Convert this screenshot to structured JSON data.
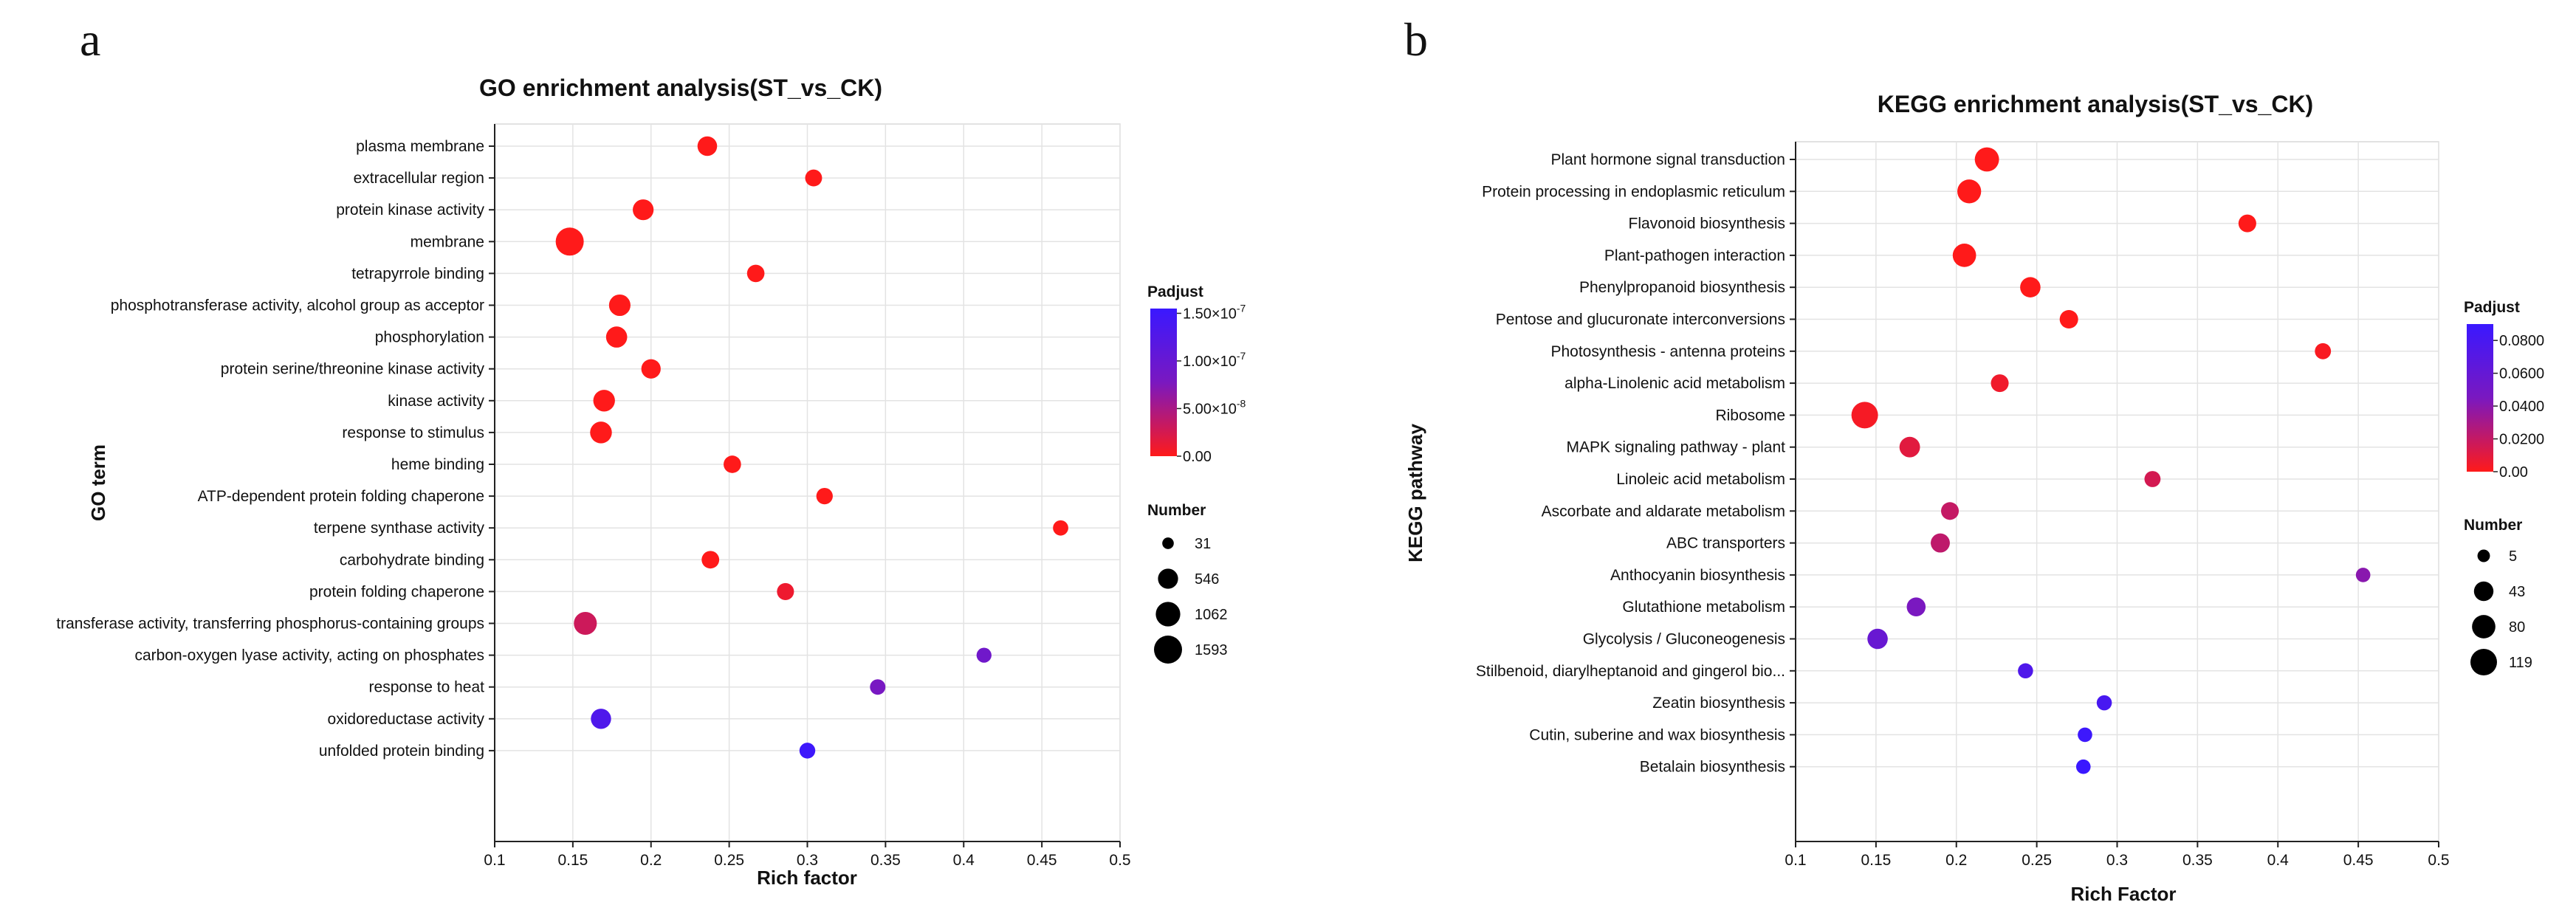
{
  "panel_labels": [
    "a",
    "b"
  ],
  "chart_data": [
    {
      "type": "scatter",
      "title": "GO enrichment analysis(ST_vs_CK)",
      "xlabel": "Rich factor",
      "ylabel": "GO term",
      "xlim": [
        0.1,
        0.5
      ],
      "x_ticks": [
        "0.1",
        "0.15",
        "0.2",
        "0.25",
        "0.3",
        "0.35",
        "0.4",
        "0.45",
        "0.5"
      ],
      "grid": true,
      "legend_position": "right",
      "color_legend": {
        "title": "Padjust",
        "range": [
          0,
          1.55e-07
        ],
        "colors": [
          "#ff1a1a",
          "#7a18c0",
          "#3a18ff"
        ],
        "ticks": [
          {
            "value": 1.5e-07,
            "base": "1.50×10",
            "exp": "-7"
          },
          {
            "value": 1e-07,
            "base": "1.00×10",
            "exp": "-7"
          },
          {
            "value": 5e-08,
            "base": "5.00×10",
            "exp": "-8"
          },
          {
            "value": 0,
            "base": "0.00",
            "exp": ""
          }
        ]
      },
      "size_legend": {
        "title": "Number",
        "entries": [
          31,
          546,
          1062,
          1593
        ],
        "labels": [
          "31",
          "546",
          "1062",
          "1593"
        ],
        "max": 1593
      },
      "categories": [
        "plasma membrane",
        "extracellular region",
        "protein kinase activity",
        "membrane",
        "tetrapyrrole binding",
        "phosphotransferase activity, alcohol group as acceptor",
        "phosphorylation",
        "protein serine/threonine kinase activity",
        "kinase activity",
        "response to stimulus",
        "heme binding",
        "ATP-dependent protein folding chaperone",
        "terpene synthase activity",
        "carbohydrate binding",
        "protein folding chaperone",
        "transferase activity, transferring phosphorus-containing groups",
        "carbon-oxygen lyase activity, acting on phosphates",
        "response to heat",
        "oxidoreductase activity",
        "unfolded protein binding"
      ],
      "rich_factor": [
        0.236,
        0.304,
        0.195,
        0.148,
        0.267,
        0.18,
        0.178,
        0.2,
        0.17,
        0.168,
        0.252,
        0.311,
        0.462,
        0.238,
        0.286,
        0.158,
        0.413,
        0.345,
        0.168,
        0.3
      ],
      "number": [
        500,
        280,
        620,
        1593,
        320,
        690,
        650,
        480,
        710,
        720,
        320,
        250,
        180,
        330,
        290,
        860,
        160,
        190,
        560,
        210
      ],
      "padjust": [
        0,
        0,
        0,
        0,
        0,
        0,
        0,
        0,
        0,
        0,
        0,
        0,
        0,
        0,
        1e-08,
        3e-08,
        9e-08,
        8e-08,
        1.3e-07,
        1.5e-07
      ]
    },
    {
      "type": "scatter",
      "title": "KEGG enrichment analysis(ST_vs_CK)",
      "xlabel": "Rich Factor",
      "ylabel": "KEGG pathway",
      "xlim": [
        0.1,
        0.5
      ],
      "x_ticks": [
        "0.1",
        "0.15",
        "0.2",
        "0.25",
        "0.3",
        "0.35",
        "0.4",
        "0.45",
        "0.5"
      ],
      "grid": true,
      "legend_position": "right",
      "color_legend": {
        "title": "Padjust",
        "range": [
          0,
          0.09
        ],
        "colors": [
          "#ff1a1a",
          "#7a18c0",
          "#3a18ff"
        ],
        "ticks": [
          {
            "value": 0.08,
            "base": "0.0800",
            "exp": ""
          },
          {
            "value": 0.06,
            "base": "0.0600",
            "exp": ""
          },
          {
            "value": 0.04,
            "base": "0.0400",
            "exp": ""
          },
          {
            "value": 0.02,
            "base": "0.0200",
            "exp": ""
          },
          {
            "value": 0,
            "base": "0.00",
            "exp": ""
          }
        ]
      },
      "size_legend": {
        "title": "Number",
        "entries": [
          5,
          43,
          80,
          119
        ],
        "labels": [
          "5",
          "43",
          "80",
          "119"
        ],
        "max": 119
      },
      "categories": [
        "Plant hormone signal transduction",
        "Protein processing in endoplasmic reticulum",
        "Flavonoid biosynthesis",
        "Plant-pathogen interaction",
        "Phenylpropanoid biosynthesis",
        "Pentose and glucuronate interconversions",
        "Photosynthesis - antenna proteins",
        "alpha-Linolenic acid metabolism",
        "Ribosome",
        "MAPK signaling pathway - plant",
        "Linoleic acid metabolism",
        "Ascorbate and aldarate metabolism",
        "ABC transporters",
        "Anthocyanin biosynthesis",
        "Glutathione metabolism",
        "Glycolysis / Gluconeogenesis",
        "Stilbenoid, diarylheptanoid and gingerol bio...",
        "Zeatin biosynthesis",
        "Cutin, suberine and wax biosynthesis",
        "Betalain biosynthesis"
      ],
      "rich_factor": [
        0.219,
        0.208,
        0.381,
        0.205,
        0.246,
        0.27,
        0.428,
        0.227,
        0.143,
        0.171,
        0.322,
        0.196,
        0.19,
        0.453,
        0.175,
        0.151,
        0.243,
        0.292,
        0.28,
        0.279
      ],
      "number": [
        90,
        85,
        30,
        80,
        50,
        35,
        20,
        30,
        119,
        52,
        20,
        30,
        40,
        12,
        38,
        50,
        15,
        15,
        12,
        12
      ],
      "padjust": [
        0,
        0,
        0,
        0,
        0,
        0,
        0.002,
        0.005,
        0.003,
        0.01,
        0.015,
        0.02,
        0.022,
        0.04,
        0.045,
        0.058,
        0.075,
        0.08,
        0.088,
        0.09
      ]
    }
  ]
}
